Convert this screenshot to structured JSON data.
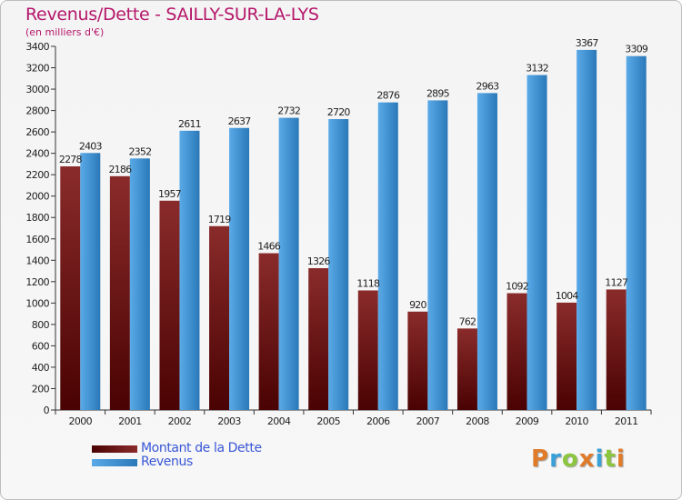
{
  "title": "Revenus/Dette - SAILLY-SUR-LA-LYS",
  "subtitle": "(en milliers d'€)",
  "logo": {
    "text": "Proxiti",
    "colors": [
      "#e07b2a",
      "#3aa0d8",
      "#8cc63f",
      "#e07b2a",
      "#3aa0d8",
      "#8cc63f",
      "#e07b2a"
    ]
  },
  "colors": {
    "dette_top": "#8a2b2b",
    "dette_bottom": "#4a0202",
    "revenus_top": "#5aaae8",
    "revenus_bottom": "#2a78b8",
    "title": "#b5176a"
  },
  "chart_data": {
    "type": "bar",
    "title": "Revenus/Dette - SAILLY-SUR-LA-LYS",
    "subtitle": "(en milliers d'€)",
    "xlabel": "",
    "ylabel": "",
    "categories": [
      "2000",
      "2001",
      "2002",
      "2003",
      "2004",
      "2005",
      "2006",
      "2007",
      "2008",
      "2009",
      "2010",
      "2011"
    ],
    "series": [
      {
        "name": "Montant de la Dette",
        "values": [
          2278,
          2186,
          1957,
          1719,
          1466,
          1326,
          1118,
          920,
          762,
          1092,
          1004,
          1127
        ]
      },
      {
        "name": "Revenus",
        "values": [
          2403,
          2352,
          2611,
          2637,
          2732,
          2720,
          2876,
          2895,
          2963,
          3132,
          3367,
          3309
        ]
      }
    ],
    "ylim": [
      0,
      3400
    ],
    "ytick_step": 200,
    "grid": false,
    "legend": "bottom-left"
  }
}
